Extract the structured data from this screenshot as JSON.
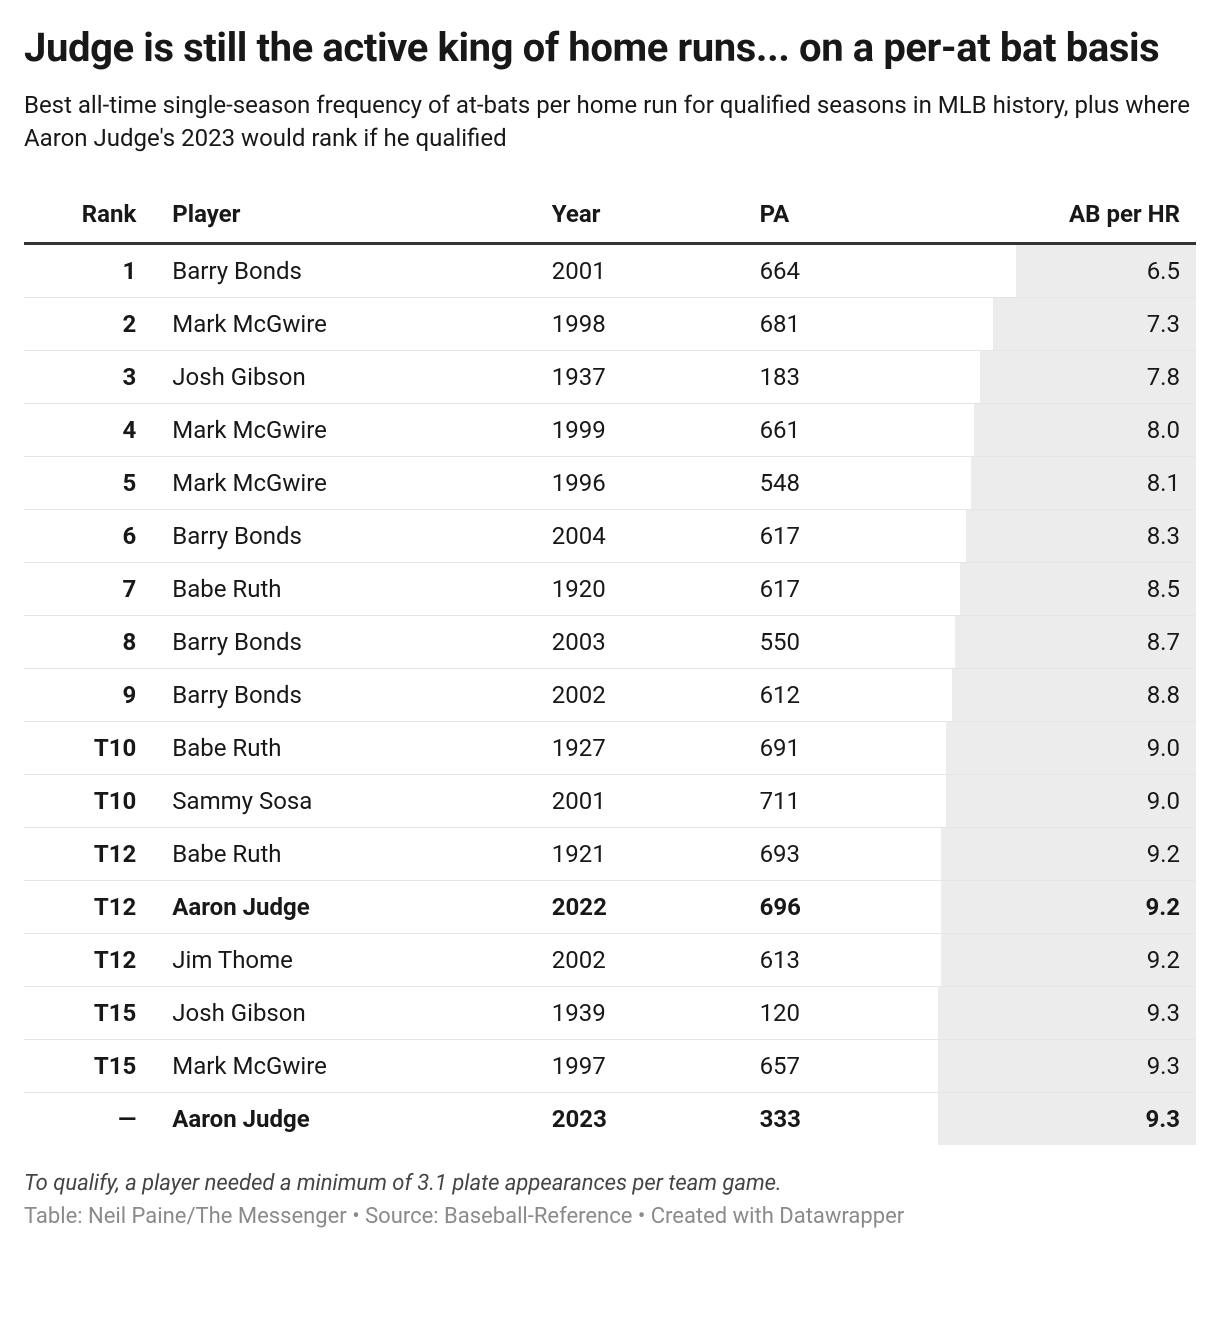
{
  "title": "Judge is still the active king of home runs... on a per-at bat basis",
  "description": "Best all-time single-season frequency of at-bats per home run for qualified seasons in MLB history, plus where Aaron Judge's 2023 would rank if he qualified",
  "columns": {
    "rank": "Rank",
    "player": "Player",
    "year": "Year",
    "pa": "PA",
    "abhr": "AB per HR"
  },
  "table": {
    "type": "table",
    "col_widths_pct": [
      10,
      34,
      18,
      16,
      22
    ],
    "header_fontsize_pt": 18,
    "body_fontsize_pt": 18,
    "header_border_color": "#333333",
    "row_border_color": "#e6e6e6",
    "highlight_bar_color": "#ececec",
    "background_color": "#ffffff",
    "text_color": "#181818",
    "bold_rows": [
      12,
      16
    ],
    "abhr_bar_max": 9.3,
    "rows": [
      {
        "rank": "1",
        "player": "Barry Bonds",
        "year": "2001",
        "pa": "664",
        "abhr": "6.5",
        "abhr_num": 6.5
      },
      {
        "rank": "2",
        "player": "Mark McGwire",
        "year": "1998",
        "pa": "681",
        "abhr": "7.3",
        "abhr_num": 7.3
      },
      {
        "rank": "3",
        "player": "Josh Gibson",
        "year": "1937",
        "pa": "183",
        "abhr": "7.8",
        "abhr_num": 7.8
      },
      {
        "rank": "4",
        "player": "Mark McGwire",
        "year": "1999",
        "pa": "661",
        "abhr": "8.0",
        "abhr_num": 8.0
      },
      {
        "rank": "5",
        "player": "Mark McGwire",
        "year": "1996",
        "pa": "548",
        "abhr": "8.1",
        "abhr_num": 8.1
      },
      {
        "rank": "6",
        "player": "Barry Bonds",
        "year": "2004",
        "pa": "617",
        "abhr": "8.3",
        "abhr_num": 8.3
      },
      {
        "rank": "7",
        "player": "Babe Ruth",
        "year": "1920",
        "pa": "617",
        "abhr": "8.5",
        "abhr_num": 8.5
      },
      {
        "rank": "8",
        "player": "Barry Bonds",
        "year": "2003",
        "pa": "550",
        "abhr": "8.7",
        "abhr_num": 8.7
      },
      {
        "rank": "9",
        "player": "Barry Bonds",
        "year": "2002",
        "pa": "612",
        "abhr": "8.8",
        "abhr_num": 8.8
      },
      {
        "rank": "T10",
        "player": "Babe Ruth",
        "year": "1927",
        "pa": "691",
        "abhr": "9.0",
        "abhr_num": 9.0
      },
      {
        "rank": "T10",
        "player": "Sammy Sosa",
        "year": "2001",
        "pa": "711",
        "abhr": "9.0",
        "abhr_num": 9.0
      },
      {
        "rank": "T12",
        "player": "Babe Ruth",
        "year": "1921",
        "pa": "693",
        "abhr": "9.2",
        "abhr_num": 9.2
      },
      {
        "rank": "T12",
        "player": "Aaron Judge",
        "year": "2022",
        "pa": "696",
        "abhr": "9.2",
        "abhr_num": 9.2
      },
      {
        "rank": "T12",
        "player": "Jim Thome",
        "year": "2002",
        "pa": "613",
        "abhr": "9.2",
        "abhr_num": 9.2
      },
      {
        "rank": "T15",
        "player": "Josh Gibson",
        "year": "1939",
        "pa": "120",
        "abhr": "9.3",
        "abhr_num": 9.3
      },
      {
        "rank": "T15",
        "player": "Mark McGwire",
        "year": "1997",
        "pa": "657",
        "abhr": "9.3",
        "abhr_num": 9.3
      },
      {
        "rank": "—",
        "player": "Aaron Judge",
        "year": "2023",
        "pa": "333",
        "abhr": "9.3",
        "abhr_num": 9.3
      }
    ]
  },
  "footnote": "To qualify, a player needed a minimum of 3.1 plate appearances per team game.",
  "credits": "Table: Neil Paine/The Messenger • Source: Baseball-Reference • Created with Datawrapper",
  "styling": {
    "headline_fontsize_pt": 30,
    "headline_fontweight": 700,
    "desc_fontsize_pt": 18,
    "footnote_color": "#444444",
    "credits_color": "#8a8a8a"
  }
}
